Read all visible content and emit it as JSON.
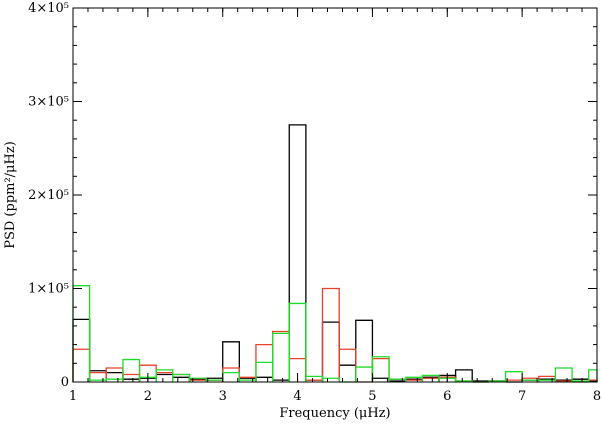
{
  "chart_data": {
    "type": "histogram-step",
    "title": "",
    "xlabel": "Frequency (μHz)",
    "ylabel": "PSD (ppm²/μHz)",
    "xlim": [
      1,
      8
    ],
    "ylim": [
      0,
      400000
    ],
    "grid": false,
    "x_ticks": [
      {
        "value": 1,
        "label": "1"
      },
      {
        "value": 2,
        "label": "2"
      },
      {
        "value": 3,
        "label": "3"
      },
      {
        "value": 4,
        "label": "4"
      },
      {
        "value": 5,
        "label": "5"
      },
      {
        "value": 6,
        "label": "6"
      },
      {
        "value": 7,
        "label": "7"
      },
      {
        "value": 8,
        "label": "8"
      }
    ],
    "y_ticks": [
      {
        "value": 0,
        "label": "0"
      },
      {
        "value": 100000,
        "label": "1×10⁵"
      },
      {
        "value": 200000,
        "label": "2×10⁵"
      },
      {
        "value": 300000,
        "label": "3×10⁵"
      },
      {
        "value": 400000,
        "label": "4×10⁵"
      }
    ],
    "bin_edges": [
      1.0,
      1.222,
      1.444,
      1.667,
      1.889,
      2.111,
      2.333,
      2.556,
      2.778,
      3.0,
      3.222,
      3.444,
      3.667,
      3.889,
      4.111,
      4.333,
      4.556,
      4.778,
      5.0,
      5.222,
      5.444,
      5.667,
      5.889,
      6.111,
      6.333,
      6.556,
      6.778,
      7.0,
      7.222,
      7.444,
      7.667,
      7.889,
      8.0
    ],
    "series": [
      {
        "color": "#000000",
        "values": [
          67000,
          12000,
          10000,
          3000,
          4000,
          8000,
          5000,
          3000,
          4000,
          43000,
          4000,
          5000,
          2000,
          275000,
          2000,
          64000,
          18000,
          66000,
          4000,
          1000,
          3000,
          5000,
          7000,
          13000,
          1000,
          1000,
          0,
          2000,
          3000,
          2000,
          3000,
          1000
        ]
      },
      {
        "color": "#e8402a",
        "values": [
          35000,
          10000,
          15000,
          8000,
          18000,
          10000,
          8000,
          2000,
          2000,
          15000,
          5000,
          40000,
          54000,
          25000,
          2000,
          100000,
          35000,
          0,
          25000,
          3000,
          2000,
          4000,
          5000,
          1000,
          0,
          1000,
          2000,
          4000,
          6000,
          1000,
          0,
          2000
        ]
      },
      {
        "color": "#1fdc2a",
        "values": [
          103000,
          2000,
          3000,
          24000,
          5000,
          13000,
          8000,
          4000,
          2000,
          10000,
          2000,
          21000,
          52000,
          84000,
          6000,
          4000,
          0,
          16000,
          27000,
          3000,
          5000,
          7000,
          4000,
          1000,
          0,
          1000,
          11000,
          2000,
          2000,
          15000,
          1000,
          13000
        ]
      }
    ]
  }
}
